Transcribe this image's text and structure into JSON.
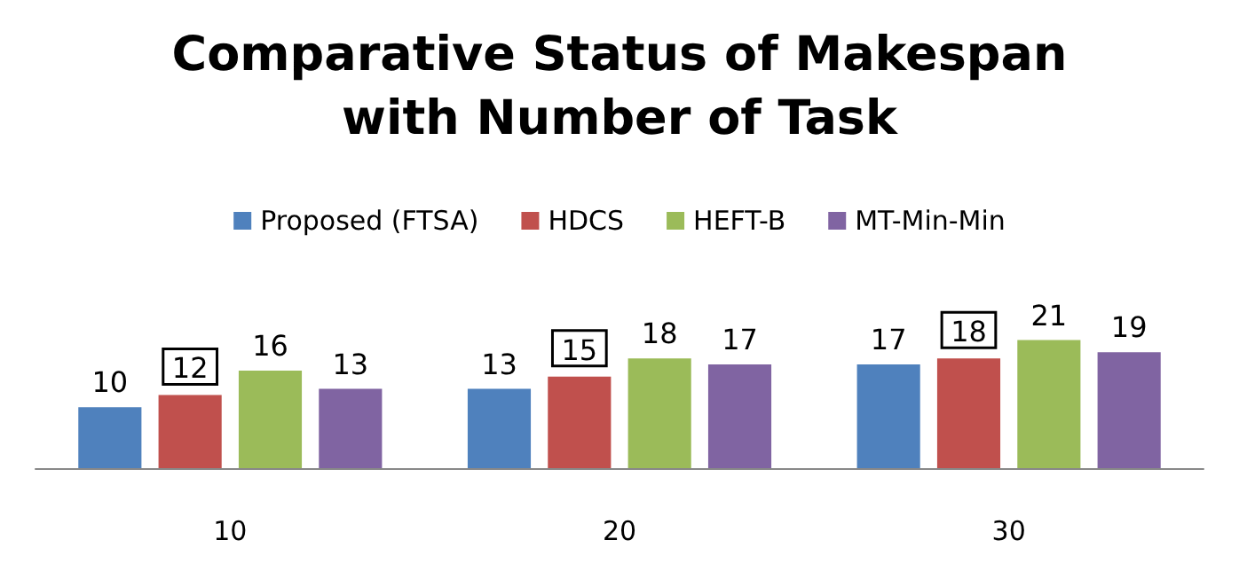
{
  "chart_data": {
    "type": "bar",
    "title": "Comparative Status of Makespan\nwith Number of Task",
    "categories": [
      "10",
      "20",
      "30"
    ],
    "series": [
      {
        "name": "Proposed (FTSA)",
        "color": "#4f81bd",
        "values": [
          10,
          13,
          17
        ]
      },
      {
        "name": "HDCS",
        "color": "#c0504d",
        "values": [
          12,
          15,
          18
        ]
      },
      {
        "name": "HEFT-B",
        "color": "#9bbb59",
        "values": [
          16,
          18,
          21
        ]
      },
      {
        "name": "MT-Min-Min",
        "color": "#8064a2",
        "values": [
          13,
          17,
          19
        ]
      }
    ],
    "data_labels": true,
    "legend": "top"
  }
}
